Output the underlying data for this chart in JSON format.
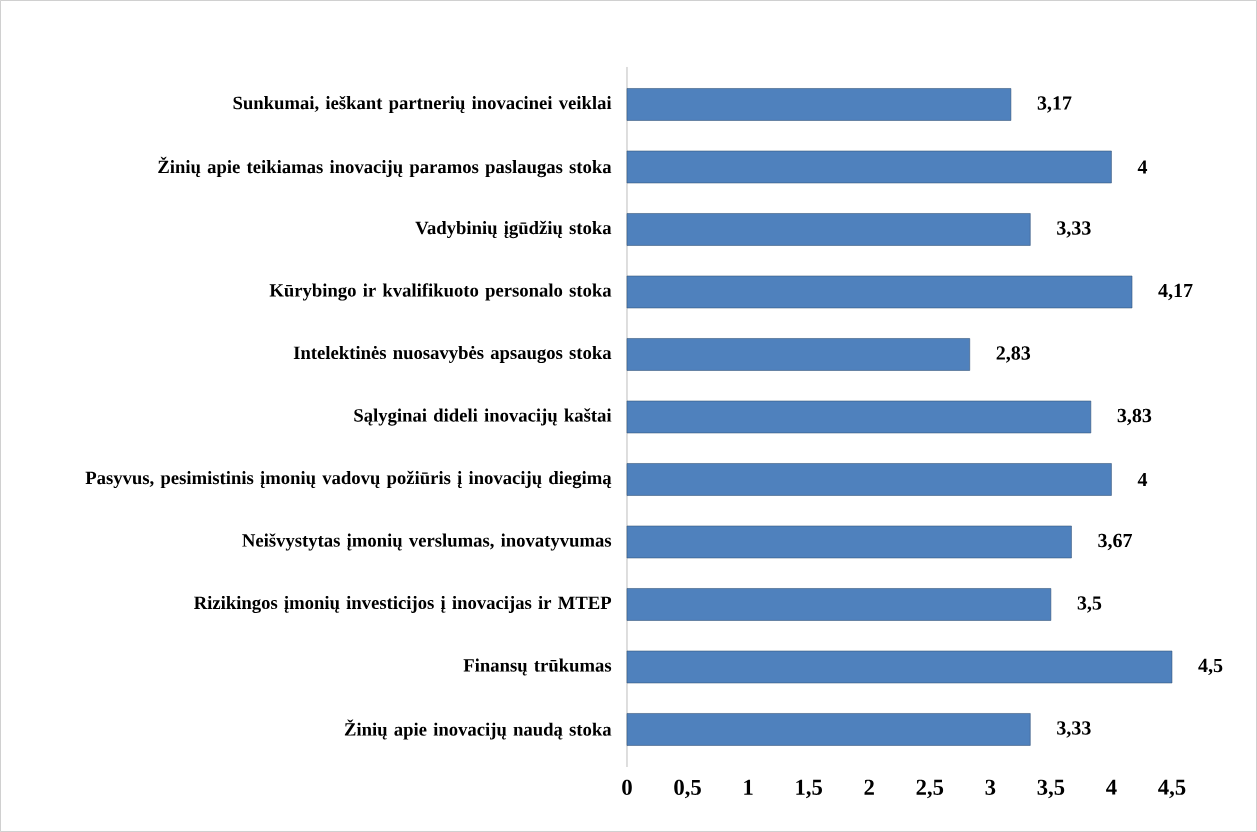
{
  "chart_data": {
    "type": "bar",
    "orientation": "horizontal",
    "categories": [
      "Sunkumai, ieškant partnerių inovacinei veiklai",
      "Žinių apie teikiamas inovacijų paramos paslaugas stoka",
      "Vadybinių įgūdžių stoka",
      "Kūrybingo ir kvalifikuoto personalo stoka",
      "Intelektinės nuosavybės apsaugos stoka",
      "Sąlyginai dideli inovacijų kaštai",
      "Pasyvus, pesimistinis įmonių vadovų požiūris į inovacijų diegimą",
      "Neišvystytas įmonių verslumas, inovatyvumas",
      "Rizikingos įmonių investicijos į inovacijas ir MTEP",
      "Finansų trūkumas",
      "Žinių apie inovacijų naudą stoka"
    ],
    "values": [
      3.17,
      4,
      3.33,
      4.17,
      2.83,
      3.83,
      4,
      3.67,
      3.5,
      4.5,
      3.33
    ],
    "value_labels": [
      "3,17",
      "4",
      "3,33",
      "4,17",
      "2,83",
      "3,83",
      "4",
      "3,67",
      "3,5",
      "4,5",
      "3,33"
    ],
    "color": "#4f81bd",
    "xlim": [
      0,
      4.5
    ],
    "xticks": [
      0,
      {
        "value": 0.5,
        "label": "0,5"
      },
      1,
      {
        "value": 1.5,
        "label": "1,5"
      },
      2,
      {
        "value": 2.5,
        "label": "2,5"
      },
      3,
      {
        "value": 3.5,
        "label": "3,5"
      },
      4,
      {
        "value": 4.5,
        "label": "4,5"
      }
    ],
    "grid": false
  }
}
